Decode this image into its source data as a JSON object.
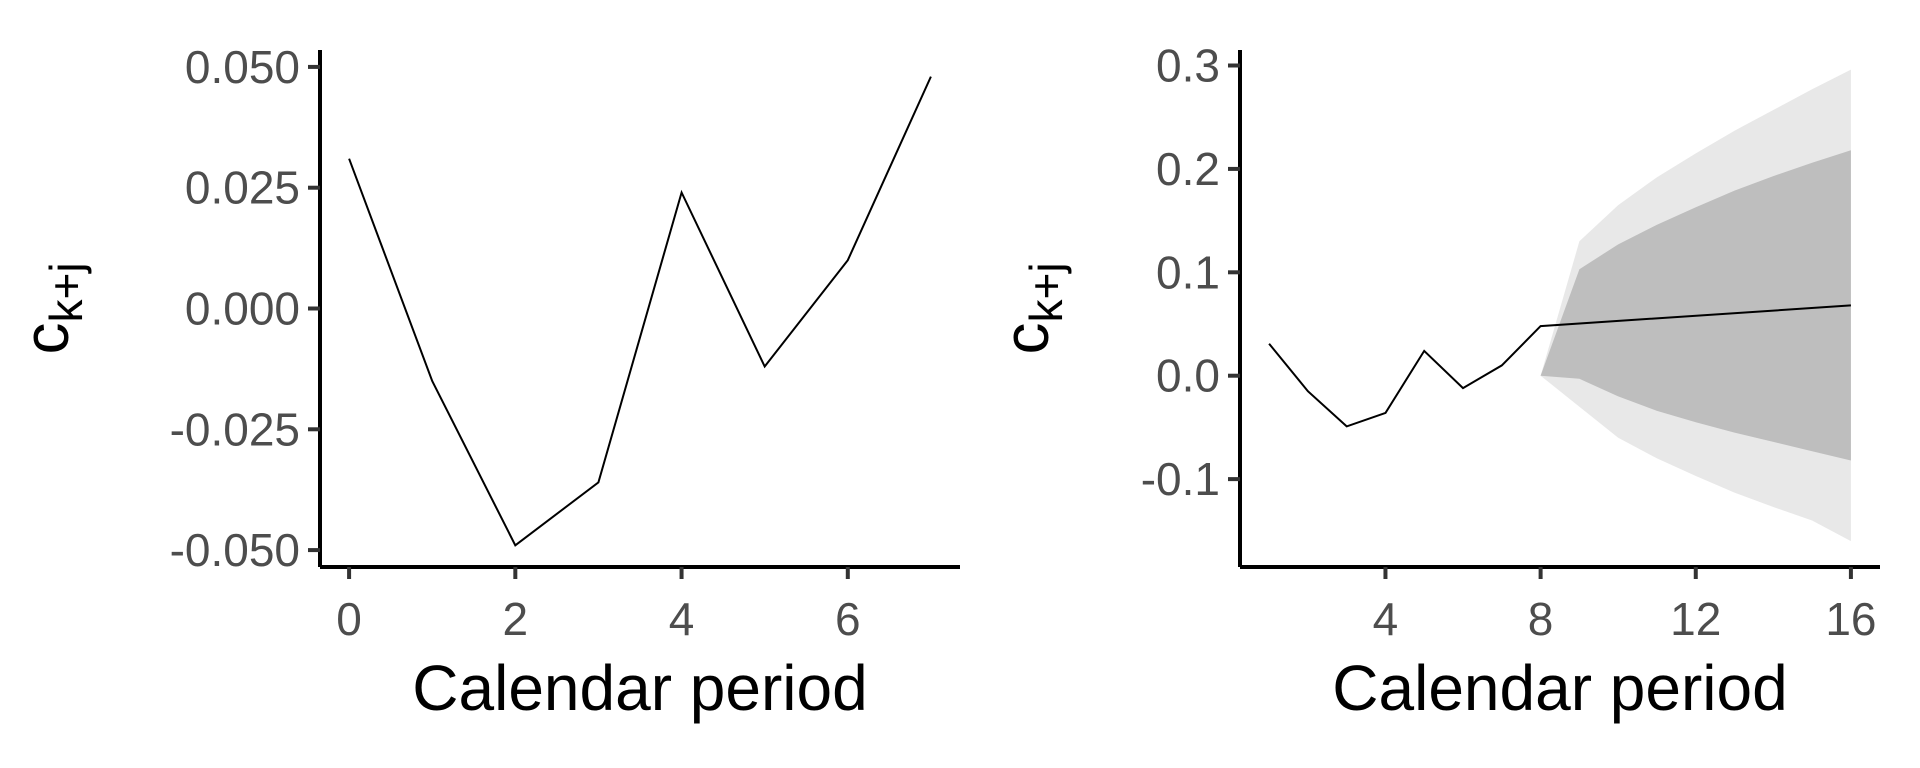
{
  "chart_data": [
    {
      "type": "line",
      "title": "",
      "xlabel": "Calendar period",
      "ylabel": {
        "base": "c",
        "subscript": "k+j"
      },
      "xlim": [
        -0.35,
        7.35
      ],
      "ylim": [
        -0.0535,
        0.0535
      ],
      "x_ticks": [
        0,
        2,
        4,
        6
      ],
      "y_ticks": [
        -0.05,
        -0.025,
        0.0,
        0.025,
        0.05
      ],
      "y_tick_labels": [
        "-0.050",
        "-0.025",
        "0.000",
        "0.025",
        "0.050"
      ],
      "grid": false,
      "series": [
        {
          "x": [
            0,
            1,
            2,
            3,
            4,
            5,
            6,
            7
          ],
          "y": [
            0.031,
            -0.015,
            -0.049,
            -0.036,
            0.024,
            -0.012,
            0.01,
            0.048
          ]
        }
      ]
    },
    {
      "type": "line",
      "title": "",
      "xlabel": "Calendar period",
      "ylabel": {
        "base": "c",
        "subscript": "k+j"
      },
      "xlim": [
        0.25,
        16.75
      ],
      "ylim": [
        -0.185,
        0.315
      ],
      "x_ticks": [
        4,
        8,
        12,
        16
      ],
      "y_ticks": [
        -0.1,
        0.0,
        0.1,
        0.2,
        0.3
      ],
      "y_tick_labels": [
        "-0.1",
        "0.0",
        "0.1",
        "0.2",
        "0.3"
      ],
      "grid": false,
      "series": [
        {
          "x": [
            1,
            2,
            3,
            4,
            5,
            6,
            7,
            8,
            16
          ],
          "y": [
            0.031,
            -0.015,
            -0.049,
            -0.036,
            0.024,
            -0.012,
            0.01,
            0.048,
            0.068
          ]
        }
      ],
      "bands": [
        {
          "color": "#e8e8e8",
          "x": [
            8,
            9,
            10,
            11,
            12,
            13,
            14,
            15,
            16
          ],
          "lower": [
            0.0,
            -0.03,
            -0.06,
            -0.08,
            -0.097,
            -0.113,
            -0.127,
            -0.14,
            -0.16
          ],
          "upper": [
            0.0,
            0.13,
            0.165,
            0.192,
            0.215,
            0.237,
            0.257,
            0.277,
            0.296
          ]
        },
        {
          "color": "#bebebe",
          "x": [
            8,
            9,
            10,
            11,
            12,
            13,
            14,
            15,
            16
          ],
          "lower": [
            0.0,
            -0.003,
            -0.02,
            -0.034,
            -0.045,
            -0.055,
            -0.064,
            -0.073,
            -0.082
          ],
          "upper": [
            0.0,
            0.103,
            0.127,
            0.146,
            0.163,
            0.179,
            0.193,
            0.206,
            0.218
          ]
        }
      ]
    }
  ]
}
